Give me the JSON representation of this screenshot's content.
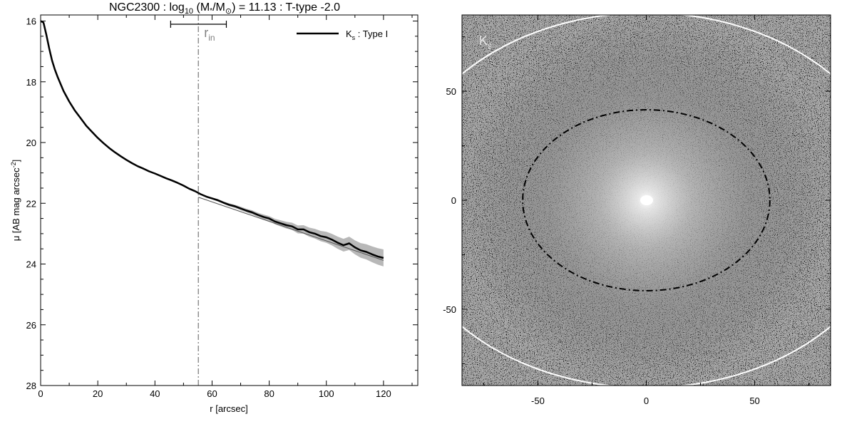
{
  "chart_data": [
    {
      "type": "line",
      "title": {
        "prefix": "NGC2300 : log",
        "sub10": "10",
        "mid1": " (M",
        "star": "*",
        "mid2": "/M",
        "sun": "⊙",
        "suffix": ") = 11.13 : T-type -2.0"
      },
      "xlabel": "r [arcsec]",
      "ylabel": {
        "main": "μ [AB mag arcsec",
        "sup": "-2",
        "end": "]"
      },
      "xlim": [
        0,
        132
      ],
      "ylim": [
        28,
        15.8
      ],
      "y_inverted": true,
      "xticks": [
        "0",
        "20",
        "40",
        "60",
        "80",
        "100",
        "120"
      ],
      "yticks": [
        "16",
        "18",
        "20",
        "22",
        "24",
        "26",
        "28"
      ],
      "legend": {
        "placement": "top-right",
        "label_main": "K",
        "label_sub": "s",
        "label_rest": " : Type I"
      },
      "r_in": {
        "x": 55.2,
        "error_low": 45.5,
        "error_high": 65.0,
        "label_main": "r",
        "label_sub": "in"
      },
      "series": [
        {
          "x": [
            0,
            1,
            2,
            3,
            4,
            5,
            6,
            8,
            10,
            12,
            14,
            16,
            18,
            20,
            22,
            24,
            26,
            28,
            30,
            32,
            34,
            36,
            38,
            40,
            42,
            44,
            46,
            48,
            50,
            52,
            54,
            55,
            56,
            58,
            60,
            62,
            64,
            66,
            68,
            70,
            72,
            74,
            76,
            78,
            80,
            82,
            84,
            86,
            88,
            90,
            92,
            94,
            96,
            98,
            100,
            102,
            104,
            106,
            108,
            110,
            112,
            114,
            116,
            118,
            120
          ],
          "values": [
            16.0,
            16.05,
            16.45,
            16.9,
            17.3,
            17.6,
            17.85,
            18.3,
            18.65,
            18.95,
            19.2,
            19.45,
            19.65,
            19.85,
            20.02,
            20.18,
            20.32,
            20.45,
            20.57,
            20.68,
            20.78,
            20.86,
            20.95,
            21.02,
            21.1,
            21.18,
            21.25,
            21.33,
            21.42,
            21.52,
            21.6,
            21.65,
            21.7,
            21.78,
            21.84,
            21.9,
            21.98,
            22.05,
            22.1,
            22.17,
            22.24,
            22.3,
            22.38,
            22.45,
            22.5,
            22.6,
            22.66,
            22.72,
            22.76,
            22.86,
            22.86,
            22.95,
            23.0,
            23.08,
            23.12,
            23.2,
            23.3,
            23.38,
            23.32,
            23.45,
            23.55,
            23.6,
            23.68,
            23.75,
            23.8
          ],
          "band": [
            0,
            0,
            0,
            0,
            0,
            0,
            0,
            0,
            0,
            0,
            0,
            0,
            0,
            0,
            0,
            0,
            0,
            0,
            0,
            0,
            0,
            0,
            0,
            0,
            0,
            0,
            0,
            0,
            0,
            0,
            0,
            0,
            0.02,
            0.03,
            0.03,
            0.04,
            0.04,
            0.05,
            0.05,
            0.06,
            0.06,
            0.07,
            0.07,
            0.08,
            0.08,
            0.09,
            0.1,
            0.11,
            0.12,
            0.13,
            0.14,
            0.15,
            0.16,
            0.17,
            0.18,
            0.19,
            0.2,
            0.21,
            0.22,
            0.23,
            0.24,
            0.25,
            0.26,
            0.27,
            0.28
          ]
        }
      ],
      "fit": {
        "x0": 55.2,
        "y0": 21.8,
        "x1": 120,
        "y1": 23.88
      }
    },
    {
      "type": "heatmap",
      "xlim": [
        -85,
        85
      ],
      "ylim": [
        -85,
        85
      ],
      "xticks": [
        "-50",
        "0",
        "50"
      ],
      "yticks": [
        "-50",
        "0",
        "50"
      ],
      "band_label": {
        "main": "K",
        "sub": "s"
      },
      "inner_ellipse": {
        "semi_major": 57,
        "semi_minor": 41.5
      },
      "outer_ellipse": {
        "semi_major": 115,
        "semi_minor": 86
      }
    }
  ],
  "colors": {
    "profile": "#000000",
    "band": "#b8b8b8",
    "fit": "#666666",
    "r_in_line": "#808080",
    "outer_ellipse": "#ffffff"
  }
}
